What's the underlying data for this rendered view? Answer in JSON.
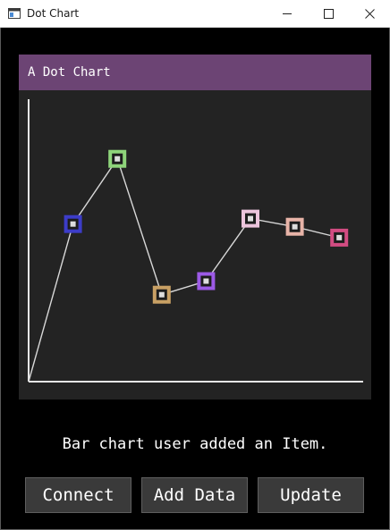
{
  "window": {
    "title": "Dot Chart",
    "icon": "app-window-icon"
  },
  "panel": {
    "title": "A Dot Chart",
    "header_color": "#6c4474",
    "background": "#232323"
  },
  "chart_data": {
    "type": "scatter",
    "title": "A Dot Chart",
    "xlabel": "",
    "ylabel": "",
    "grid": false,
    "connect_line": true,
    "origin": [
      0,
      0
    ],
    "x": [
      1,
      2,
      3,
      4,
      5,
      6,
      7
    ],
    "y": [
      58,
      82,
      32,
      37,
      60,
      57,
      53
    ],
    "xlim": [
      0,
      7.5
    ],
    "ylim": [
      0,
      100
    ],
    "colors": [
      "#3c3cc8",
      "#8ed47a",
      "#c8a064",
      "#9c5ae6",
      "#ecc4dc",
      "#e8b4a8",
      "#d24c82"
    ],
    "line_color": "#d8d8d8"
  },
  "status": {
    "message": "Bar chart user added an Item."
  },
  "buttons": {
    "connect": "Connect",
    "add_data": "Add Data",
    "update": "Update"
  }
}
